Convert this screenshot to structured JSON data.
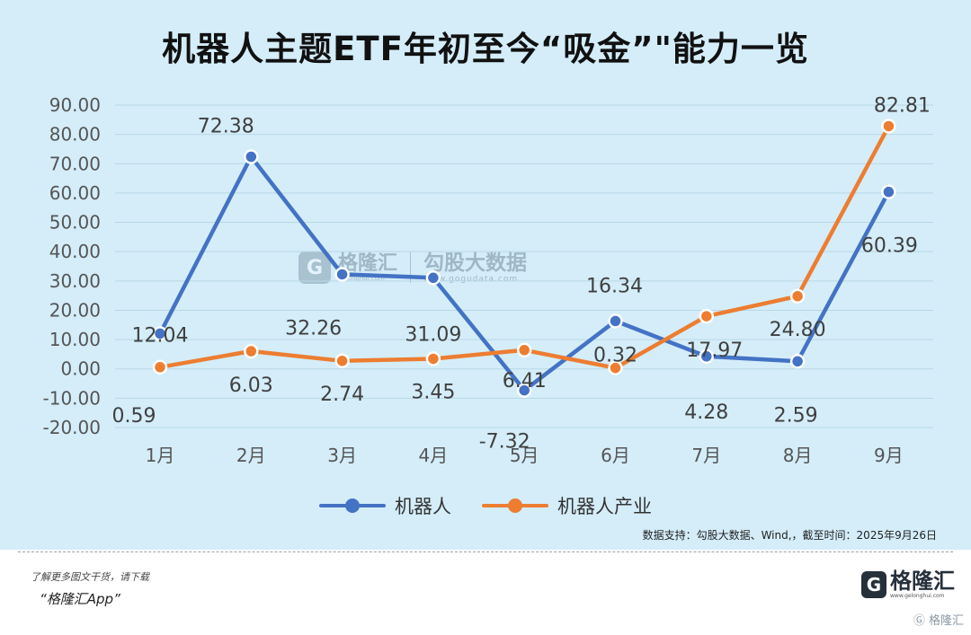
{
  "title": "机器人主题ETF年初至今“吸金”\"能力一览",
  "colors": {
    "panel_bg": "#d4edf9",
    "series_1": "#4472c4",
    "series_2": "#ed7d31"
  },
  "chart_data": {
    "type": "line",
    "title": "机器人主题ETF年初至今“吸金”\"能力一览",
    "categories": [
      "1月",
      "2月",
      "3月",
      "4月",
      "5月",
      "6月",
      "7月",
      "8月",
      "9月"
    ],
    "series": [
      {
        "name": "机器人",
        "color": "#4472c4",
        "values": [
          12.04,
          72.38,
          32.26,
          31.09,
          -7.32,
          16.34,
          4.28,
          2.59,
          60.39
        ]
      },
      {
        "name": "机器人产业",
        "color": "#ed7d31",
        "values": [
          0.59,
          6.03,
          2.74,
          3.45,
          6.41,
          0.32,
          17.97,
          24.8,
          82.81
        ]
      }
    ],
    "ylim": [
      -20,
      90
    ],
    "yticks": [
      "90.00",
      "80.00",
      "70.00",
      "60.00",
      "50.00",
      "40.00",
      "30.00",
      "20.00",
      "10.00",
      "0.00",
      "-10.00",
      "-20.00"
    ],
    "grid": true,
    "legend_position": "bottom",
    "xlabel": "",
    "ylabel": ""
  },
  "source_note": "数据支持：勾股大数据、Wind,，截至时间：2025年9月26日",
  "watermark": {
    "brand": "格隆汇",
    "brand_url": "gelonghui.com",
    "product": "勾股大数据",
    "product_url": "www.gogudata.com"
  },
  "footer": {
    "line1": "了解更多图文干货，请下载",
    "line2": "“格隆汇App”",
    "brand": "格隆汇",
    "brand_url": "www.gelonghui.com",
    "corner": "格隆汇"
  }
}
